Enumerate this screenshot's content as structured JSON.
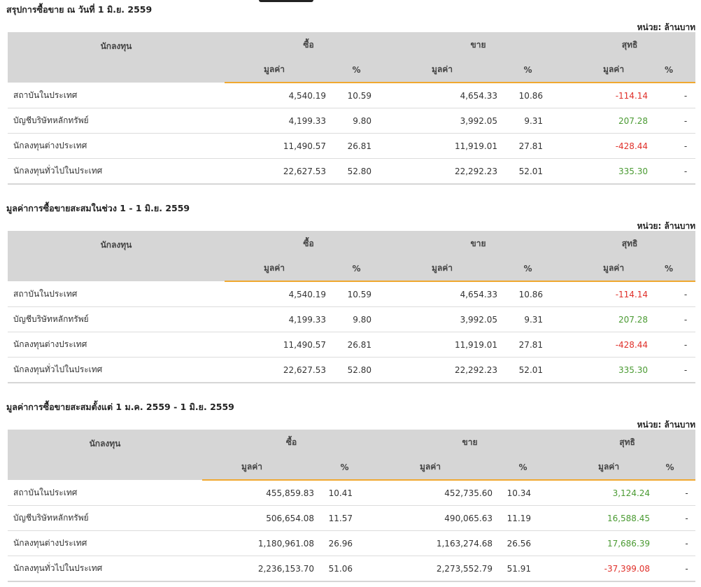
{
  "sections": [
    {
      "title": "สรุปการซื้อขาย ณ วันที่ 1 มิ.ย. 2559",
      "unit": "หน่วย: ล้านบาท",
      "headers": {
        "investor": "นักลงทุน",
        "buy": "ซื้อ",
        "sell": "ขาย",
        "net": "สุทธิ",
        "value": "มูลค่า",
        "pct": "%"
      },
      "rows": [
        {
          "name": "สถาบันในประเทศ",
          "buy_value": "4,540.19",
          "buy_pct": "10.59",
          "sell_value": "4,654.33",
          "sell_pct": "10.86",
          "net_value": "-114.14",
          "net_pct": "-",
          "net_sign": "neg"
        },
        {
          "name": "บัญชีบริษัทหลักทรัพย์",
          "buy_value": "4,199.33",
          "buy_pct": "9.80",
          "sell_value": "3,992.05",
          "sell_pct": "9.31",
          "net_value": "207.28",
          "net_pct": "-",
          "net_sign": "pos"
        },
        {
          "name": "นักลงทุนต่างประเทศ",
          "buy_value": "11,490.57",
          "buy_pct": "26.81",
          "sell_value": "11,919.01",
          "sell_pct": "27.81",
          "net_value": "-428.44",
          "net_pct": "-",
          "net_sign": "neg"
        },
        {
          "name": "นักลงทุนทั่วไปในประเทศ",
          "buy_value": "22,627.53",
          "buy_pct": "52.80",
          "sell_value": "22,292.23",
          "sell_pct": "52.01",
          "net_value": "335.30",
          "net_pct": "-",
          "net_sign": "pos"
        }
      ]
    },
    {
      "title": "มูลค่าการซื้อขายสะสมในช่วง 1 - 1 มิ.ย. 2559",
      "unit": "หน่วย: ล้านบาท",
      "headers": {
        "investor": "นักลงทุน",
        "buy": "ซื้อ",
        "sell": "ขาย",
        "net": "สุทธิ",
        "value": "มูลค่า",
        "pct": "%"
      },
      "rows": [
        {
          "name": "สถาบันในประเทศ",
          "buy_value": "4,540.19",
          "buy_pct": "10.59",
          "sell_value": "4,654.33",
          "sell_pct": "10.86",
          "net_value": "-114.14",
          "net_pct": "-",
          "net_sign": "neg"
        },
        {
          "name": "บัญชีบริษัทหลักทรัพย์",
          "buy_value": "4,199.33",
          "buy_pct": "9.80",
          "sell_value": "3,992.05",
          "sell_pct": "9.31",
          "net_value": "207.28",
          "net_pct": "-",
          "net_sign": "pos"
        },
        {
          "name": "นักลงทุนต่างประเทศ",
          "buy_value": "11,490.57",
          "buy_pct": "26.81",
          "sell_value": "11,919.01",
          "sell_pct": "27.81",
          "net_value": "-428.44",
          "net_pct": "-",
          "net_sign": "neg"
        },
        {
          "name": "นักลงทุนทั่วไปในประเทศ",
          "buy_value": "22,627.53",
          "buy_pct": "52.80",
          "sell_value": "22,292.23",
          "sell_pct": "52.01",
          "net_value": "335.30",
          "net_pct": "-",
          "net_sign": "pos"
        }
      ]
    },
    {
      "title": "มูลค่าการซื้อขายสะสมตั้งแต่ 1 ม.ค. 2559 - 1 มิ.ย. 2559",
      "unit": "หน่วย: ล้านบาท",
      "headers": {
        "investor": "นักลงทุน",
        "buy": "ซื้อ",
        "sell": "ขาย",
        "net": "สุทธิ",
        "value": "มูลค่า",
        "pct": "%"
      },
      "rows": [
        {
          "name": "สถาบันในประเทศ",
          "buy_value": "455,859.83",
          "buy_pct": "10.41",
          "sell_value": "452,735.60",
          "sell_pct": "10.34",
          "net_value": "3,124.24",
          "net_pct": "-",
          "net_sign": "pos"
        },
        {
          "name": "บัญชีบริษัทหลักทรัพย์",
          "buy_value": "506,654.08",
          "buy_pct": "11.57",
          "sell_value": "490,065.63",
          "sell_pct": "11.19",
          "net_value": "16,588.45",
          "net_pct": "-",
          "net_sign": "pos"
        },
        {
          "name": "นักลงทุนต่างประเทศ",
          "buy_value": "1,180,961.08",
          "buy_pct": "26.96",
          "sell_value": "1,163,274.68",
          "sell_pct": "26.56",
          "net_value": "17,686.39",
          "net_pct": "-",
          "net_sign": "pos"
        },
        {
          "name": "นักลงทุนทั่วไปในประเทศ",
          "buy_value": "2,236,153.70",
          "buy_pct": "51.06",
          "sell_value": "2,273,552.79",
          "sell_pct": "51.91",
          "net_value": "-37,399.08",
          "net_pct": "-",
          "net_sign": "neg"
        }
      ]
    }
  ],
  "colors": {
    "header_bg": "#d6d6d6",
    "accent_underline": "#f0a830",
    "negative": "#e0302a",
    "positive": "#4a9a32"
  }
}
